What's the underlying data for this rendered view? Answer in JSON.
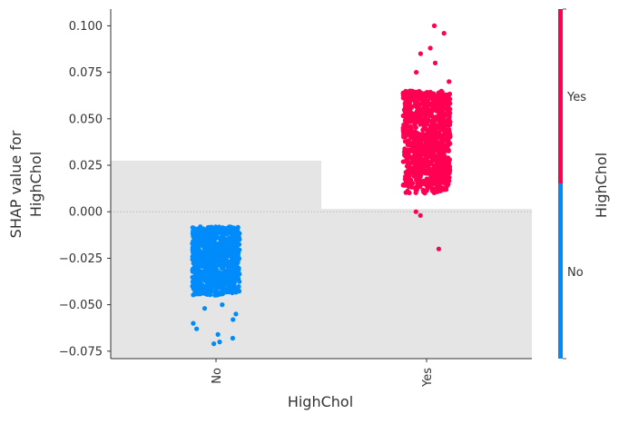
{
  "chart_data": {
    "type": "scatter",
    "xlabel": "HighChol",
    "ylabel_lines": [
      "SHAP value for",
      "HighChol"
    ],
    "categories": [
      "No",
      "Yes"
    ],
    "ylim": [
      -0.079,
      0.109
    ],
    "yticks": [
      0.1,
      0.075,
      0.05,
      0.025,
      0.0,
      -0.025,
      -0.05,
      -0.075
    ],
    "ytick_labels": [
      "0.100",
      "0.075",
      "0.050",
      "0.025",
      "0.000",
      "−0.025",
      "−0.050",
      "−0.075"
    ],
    "zero_line": 0.0,
    "background_histogram": [
      {
        "category": "No",
        "height": 0.0275
      },
      {
        "category": "Yes",
        "height": 0.0015
      }
    ],
    "series": [
      {
        "category": "No",
        "color": "#008bfb",
        "dense_band": [
          -0.045,
          -0.008
        ],
        "outliers": [
          -0.05,
          -0.052,
          -0.055,
          -0.058,
          -0.06,
          -0.063,
          -0.066,
          -0.068,
          -0.07,
          -0.071
        ]
      },
      {
        "category": "Yes",
        "color": "#ff0052",
        "dense_band": [
          0.01,
          0.065
        ],
        "outliers": [
          0.07,
          0.075,
          0.08,
          0.085,
          0.088,
          0.096,
          0.1,
          0.0,
          -0.002,
          -0.02
        ]
      }
    ],
    "colorbar": {
      "label": "HighChol",
      "high_label": "Yes",
      "low_label": "No",
      "high_color": "#ff0052",
      "low_color": "#008bfb"
    },
    "grid": false
  }
}
